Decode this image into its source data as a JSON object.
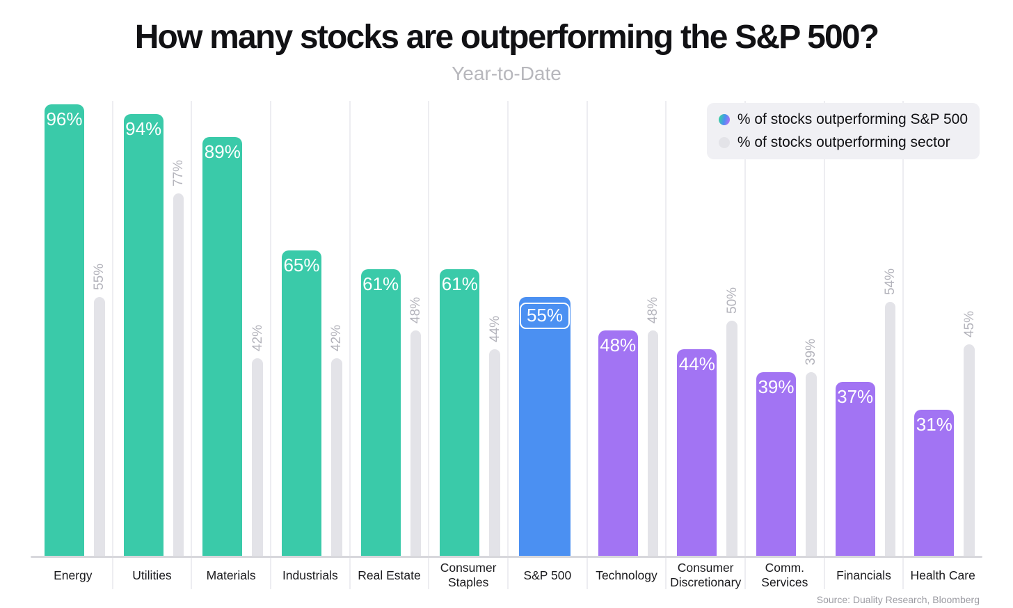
{
  "title": "How many stocks are outperforming the S&P 500?",
  "subtitle": "Year-to-Date",
  "source": "Source: Duality Research, Bloomberg",
  "legend": {
    "items": [
      {
        "label": "% of stocks outperforming S&P 500",
        "swatch": "gradient-dot"
      },
      {
        "label": "% of stocks outperforming sector",
        "swatch": "gray-dot"
      }
    ]
  },
  "palette": {
    "teal": "#3acaa9",
    "blue": "#4b90f2",
    "purple": "#a274f3",
    "gray_bar": "#e3e3e8",
    "gridline": "#ededf1",
    "axis_line": "#d8d8dc",
    "rotated_label": "#b3b3bb",
    "subtitle_gray": "#b7b7bc",
    "source_gray": "#9b9ba2",
    "legend_bg": "#f0f0f4",
    "gradient_dot": [
      "#3acaa9",
      "#4b90f2",
      "#a274f3"
    ]
  },
  "chart_data": {
    "type": "bar",
    "title": "How many stocks are outperforming the S&P 500?",
    "subtitle": "Year-to-Date",
    "categories": [
      "Energy",
      "Utilities",
      "Materials",
      "Industrials",
      "Real Estate",
      "Consumer Staples",
      "S&P 500",
      "Technology",
      "Consumer Discretionary",
      "Comm. Services",
      "Financials",
      "Health Care"
    ],
    "category_lines": [
      [
        "Energy"
      ],
      [
        "Utilities"
      ],
      [
        "Materials"
      ],
      [
        "Industrials"
      ],
      [
        "Real Estate"
      ],
      [
        "Consumer",
        "Staples"
      ],
      [
        "S&P 500"
      ],
      [
        "Technology"
      ],
      [
        "Consumer",
        "Discretionary"
      ],
      [
        "Comm.",
        "Services"
      ],
      [
        "Financials"
      ],
      [
        "Health Care"
      ]
    ],
    "series": [
      {
        "name": "% of stocks outperforming S&P 500",
        "values": [
          96,
          94,
          89,
          65,
          61,
          61,
          55,
          48,
          44,
          39,
          37,
          31
        ],
        "label_format": "percent"
      },
      {
        "name": "% of stocks outperforming sector",
        "values": [
          55,
          77,
          42,
          42,
          48,
          44,
          null,
          48,
          50,
          39,
          54,
          45
        ],
        "label_format": "percent"
      }
    ],
    "bar_colors": [
      "teal",
      "teal",
      "teal",
      "teal",
      "teal",
      "teal",
      "blue",
      "purple",
      "purple",
      "purple",
      "purple",
      "purple"
    ],
    "highlight_index": 6,
    "ylim": [
      0,
      100
    ],
    "grid": "vertical-between-categories",
    "legend_position": "top-right",
    "xlabel": "",
    "ylabel": ""
  }
}
